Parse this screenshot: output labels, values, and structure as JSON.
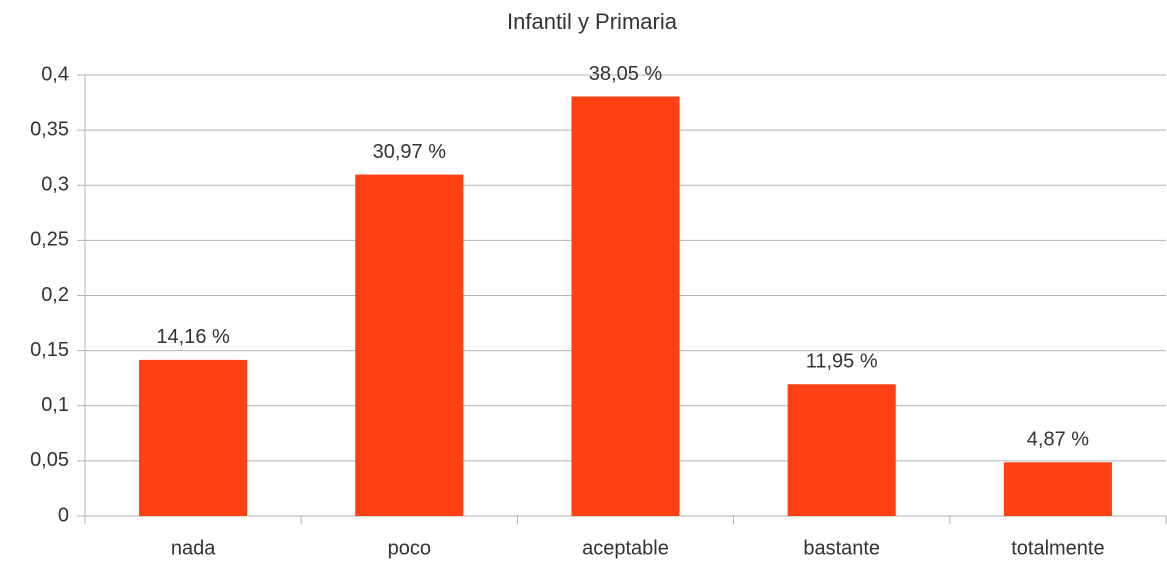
{
  "chart_data": {
    "type": "bar",
    "title": "Infantil y Primaria",
    "categories": [
      "nada",
      "poco",
      "aceptable",
      "bastante",
      "totalmente"
    ],
    "values": [
      0.1416,
      0.3097,
      0.3805,
      0.1195,
      0.0487
    ],
    "value_labels": [
      "14,16 %",
      "30,97 %",
      "38,05 %",
      "11,95 %",
      "4,87 %"
    ],
    "color": "#ff4013",
    "ylim": [
      0,
      0.4
    ],
    "yticks": [
      0,
      {
        "value": 0.05,
        "label": "0,05"
      },
      {
        "value": 0.1,
        "label": "0,1"
      },
      {
        "value": 0.15,
        "label": "0,15"
      },
      {
        "value": 0.2,
        "label": "0,2"
      },
      {
        "value": 0.25,
        "label": "0,25"
      },
      {
        "value": 0.3,
        "label": "0,3"
      },
      {
        "value": 0.35,
        "label": "0,35"
      },
      {
        "value": 0.4,
        "label": "0,4"
      }
    ],
    "grid": true
  }
}
